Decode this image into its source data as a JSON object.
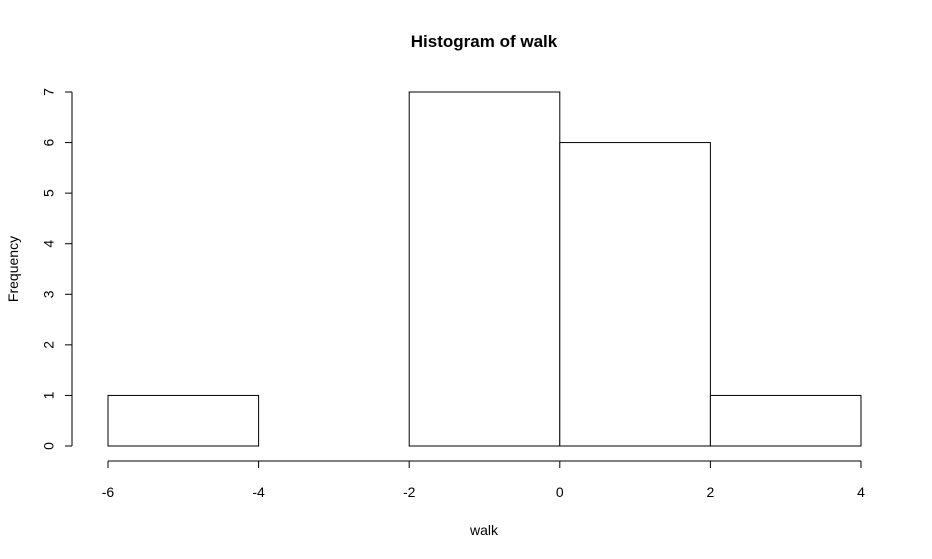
{
  "chart_data": {
    "type": "bar",
    "title": "Histogram of walk",
    "xlabel": "walk",
    "ylabel": "Frequency",
    "bins": [
      {
        "x0": -6,
        "x1": -4,
        "count": 1
      },
      {
        "x0": -4,
        "x1": -2,
        "count": 0
      },
      {
        "x0": -2,
        "x1": 0,
        "count": 7
      },
      {
        "x0": 0,
        "x1": 2,
        "count": 6
      },
      {
        "x0": 2,
        "x1": 4,
        "count": 1
      }
    ],
    "x_ticks": [
      -6,
      -4,
      -2,
      0,
      2,
      4
    ],
    "y_ticks": [
      0,
      1,
      2,
      3,
      4,
      5,
      6,
      7
    ],
    "xlim": [
      -6,
      4
    ],
    "ylim": [
      0,
      7
    ],
    "grid": false,
    "colors": {
      "bar_fill": "#ffffff",
      "bar_stroke": "#000000"
    }
  }
}
